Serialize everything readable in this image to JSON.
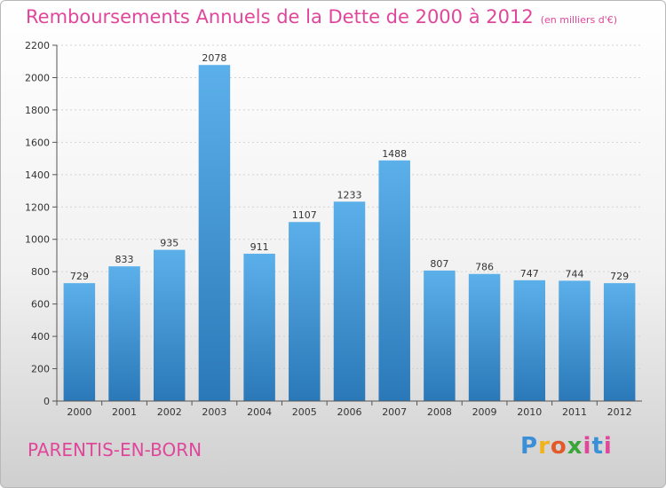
{
  "chart_data": {
    "type": "bar",
    "title": "Remboursements Annuels de la Dette de 2000 à 2012",
    "unit_note": "(en milliers d'€)",
    "categories": [
      "2000",
      "2001",
      "2002",
      "2003",
      "2004",
      "2005",
      "2006",
      "2007",
      "2008",
      "2009",
      "2010",
      "2011",
      "2012"
    ],
    "values": [
      729,
      833,
      935,
      2078,
      911,
      1107,
      1233,
      1488,
      807,
      786,
      747,
      744,
      729
    ],
    "ylim": [
      0,
      2200
    ],
    "yticks": [
      0,
      200,
      400,
      600,
      800,
      1000,
      1200,
      1400,
      1600,
      1800,
      2000,
      2200
    ],
    "grid": true,
    "bar_color_top": "#5cb0ea",
    "bar_color_bottom": "#2a78b8"
  },
  "footer": {
    "commune": "PARENTIS-EN-BORN",
    "logo_letters": [
      "P",
      "r",
      "o",
      "x",
      "i",
      "t",
      "i"
    ]
  }
}
